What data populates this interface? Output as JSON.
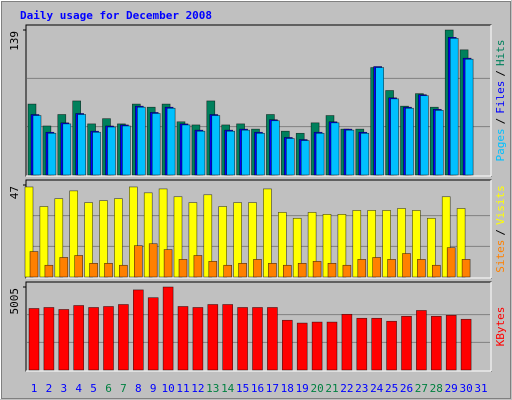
{
  "chart_data": [
    {
      "type": "bar",
      "title": "Daily usage for December 2008",
      "categories": [
        "1",
        "2",
        "3",
        "4",
        "5",
        "6",
        "7",
        "8",
        "9",
        "10",
        "11",
        "12",
        "13",
        "14",
        "15",
        "16",
        "17",
        "18",
        "19",
        "20",
        "21",
        "22",
        "23",
        "24",
        "25",
        "26",
        "27",
        "28",
        "29",
        "30",
        "31"
      ],
      "category_colors": [
        "#0000ff",
        "#0000ff",
        "#0000ff",
        "#0000ff",
        "#0000ff",
        "#008040",
        "#008040",
        "#0000ff",
        "#0000ff",
        "#0000ff",
        "#0000ff",
        "#0000ff",
        "#008040",
        "#008040",
        "#0000ff",
        "#0000ff",
        "#0000ff",
        "#0000ff",
        "#0000ff",
        "#008040",
        "#008040",
        "#0000ff",
        "#0000ff",
        "#0000ff",
        "#0000ff",
        "#0000ff",
        "#008040",
        "#008040",
        "#0000ff",
        "#0000ff",
        "#0000ff"
      ],
      "legend_separator": "/",
      "ylim": [
        0,
        139
      ],
      "yticks": [
        139
      ],
      "series": [
        {
          "name": "Pages",
          "color": "#00c0ff",
          "values": [
            57,
            40,
            49,
            58,
            41,
            46,
            47,
            65,
            59,
            64,
            48,
            42,
            57,
            42,
            43,
            40,
            52,
            35,
            33,
            40,
            50,
            43,
            40,
            103,
            73,
            64,
            76,
            62,
            131,
            111,
            0
          ]
        },
        {
          "name": "Files",
          "color": "#0000ff",
          "values": [
            58,
            41,
            50,
            59,
            42,
            47,
            48,
            66,
            60,
            65,
            49,
            43,
            58,
            43,
            44,
            41,
            53,
            36,
            34,
            41,
            51,
            44,
            41,
            104,
            74,
            65,
            77,
            63,
            132,
            112,
            0
          ]
        },
        {
          "name": "Hits",
          "color": "#00805c",
          "values": [
            68,
            47,
            58,
            71,
            49,
            54,
            49,
            68,
            65,
            68,
            51,
            48,
            71,
            48,
            49,
            44,
            58,
            42,
            40,
            50,
            57,
            44,
            44,
            103,
            81,
            66,
            78,
            65,
            139,
            120,
            0
          ]
        }
      ]
    },
    {
      "type": "bar",
      "legend_separator": "/",
      "ylim": [
        0,
        47
      ],
      "yticks": [
        47
      ],
      "series": [
        {
          "name": "Sites",
          "color": "#ff8000",
          "values": [
            13,
            6,
            10,
            11,
            7,
            7,
            6,
            16,
            17,
            14,
            9,
            11,
            8,
            6,
            7,
            9,
            7,
            6,
            7,
            8,
            7,
            6,
            9,
            10,
            9,
            12,
            9,
            6,
            15,
            9,
            0
          ]
        },
        {
          "name": "Visits",
          "color": "#ffff00",
          "values": [
            46,
            36,
            40,
            44,
            38,
            39,
            40,
            46,
            43,
            45,
            41,
            38,
            42,
            36,
            38,
            38,
            45,
            33,
            30,
            33,
            32,
            32,
            34,
            34,
            34,
            35,
            34,
            30,
            41,
            35,
            0
          ]
        }
      ]
    },
    {
      "type": "bar",
      "ylim": [
        0,
        5005
      ],
      "yticks": [
        5005
      ],
      "series": [
        {
          "name": "KBytes",
          "color": "#ff0000",
          "values": [
            3710,
            3770,
            3650,
            3890,
            3770,
            3830,
            3950,
            4830,
            4360,
            5005,
            3830,
            3770,
            3950,
            3950,
            3770,
            3770,
            3770,
            3000,
            2830,
            2890,
            2890,
            3360,
            3120,
            3120,
            2940,
            3240,
            3590,
            3240,
            3300,
            3060,
            0
          ]
        }
      ]
    }
  ]
}
